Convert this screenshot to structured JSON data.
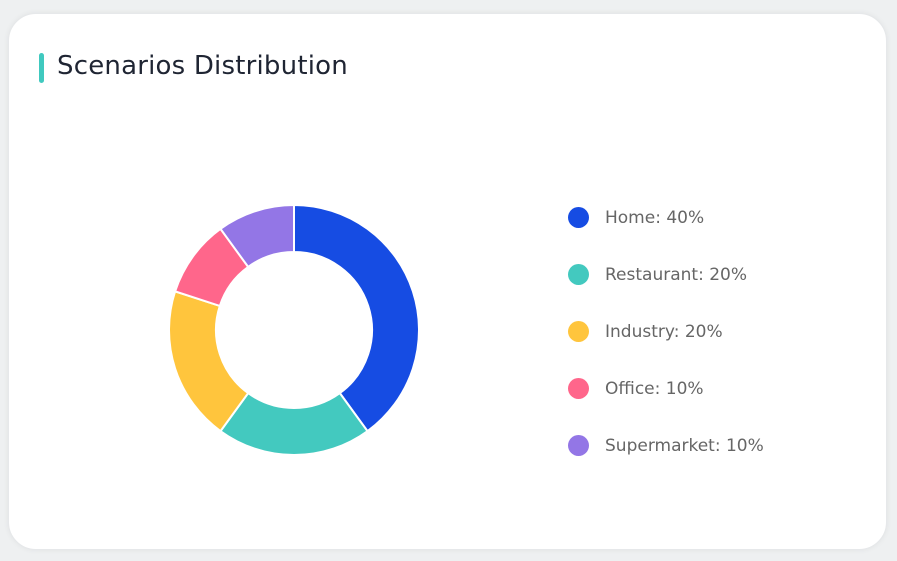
{
  "title": "Scenarios Distribution",
  "accent_color": "#40c9bf",
  "chart_data": {
    "type": "pie",
    "variant": "donut",
    "start_angle": "top",
    "direction": "clockwise",
    "legend_position": "right",
    "slices": [
      {
        "name": "Home",
        "value": 40,
        "color": "#164ce3",
        "label": "Home: 40%"
      },
      {
        "name": "Restaurant",
        "value": 20,
        "color": "#43c9bf",
        "label": "Restaurant: 20%"
      },
      {
        "name": "Industry",
        "value": 20,
        "color": "#ffc53d",
        "label": "Industry: 20%"
      },
      {
        "name": "Office",
        "value": 10,
        "color": "#ff668b",
        "label": "Office: 10%"
      },
      {
        "name": "Supermarket",
        "value": 10,
        "color": "#9376e6",
        "label": "Supermarket: 10%"
      }
    ]
  }
}
